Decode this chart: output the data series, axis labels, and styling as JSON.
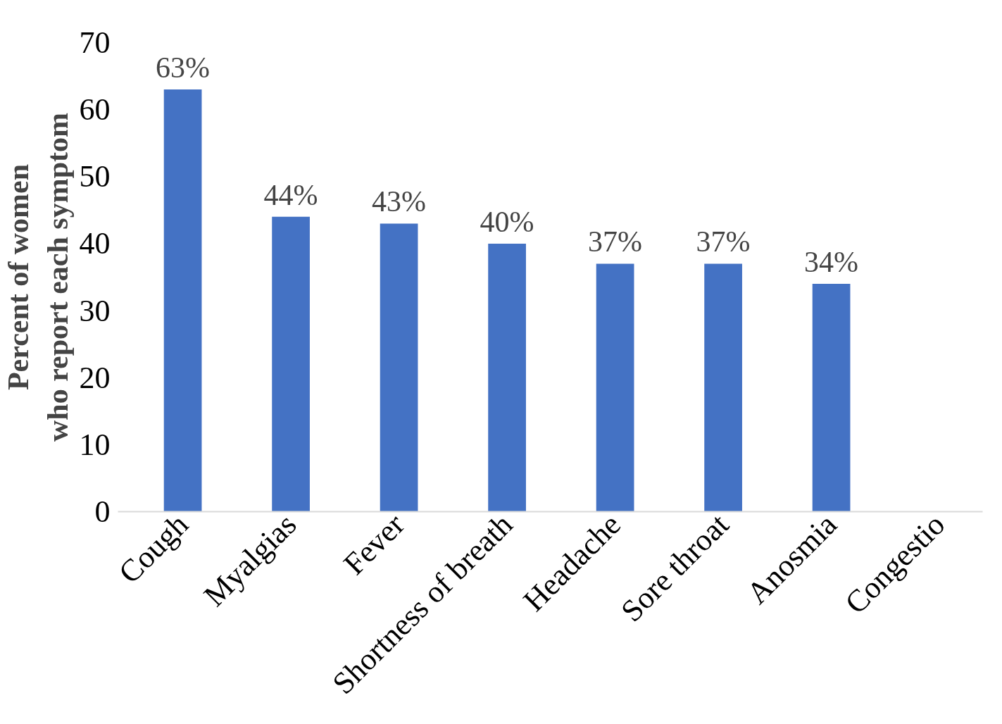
{
  "chart_data": {
    "type": "bar",
    "ylabel": "Percent of women\nwho report each symptom",
    "categories": [
      "Cough",
      "Myalgias",
      "Fever",
      "Shortness of breath",
      "Headache",
      "Sore throat",
      "Anosmia",
      "Congestio"
    ],
    "values": [
      63,
      44,
      43,
      40,
      37,
      37,
      34,
      null
    ],
    "value_labels": [
      "63%",
      "44%",
      "43%",
      "40%",
      "37%",
      "37%",
      "34%",
      null
    ],
    "color": "#4472c4",
    "ylim": [
      0,
      70
    ],
    "yticks": [
      0,
      10,
      20,
      30,
      40,
      50,
      60,
      70
    ],
    "grid": false
  }
}
